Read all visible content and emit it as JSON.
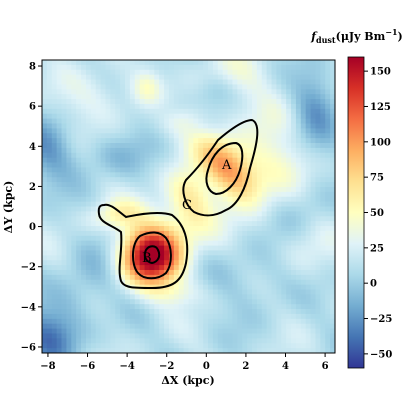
{
  "chart_data": {
    "type": "heatmap",
    "title": "",
    "xlabel": "ΔX (kpc)",
    "ylabel": "ΔY (kpc)",
    "xlim": [
      -8.3,
      6.5
    ],
    "ylim": [
      -6.3,
      8.3
    ],
    "x_ticks": [
      -8,
      -6,
      -4,
      -2,
      0,
      2,
      4,
      6
    ],
    "y_ticks": [
      -6,
      -4,
      -2,
      0,
      2,
      4,
      6,
      8
    ],
    "x_tick_labels": [
      "−8",
      "−6",
      "−4",
      "−2",
      "0",
      "2",
      "4",
      "6"
    ],
    "y_tick_labels": [
      "−6",
      "−4",
      "−2",
      "0",
      "2",
      "4",
      "6",
      "8"
    ],
    "colorbar": {
      "label": "f_dust(μJy Bm⁻¹)",
      "label_main": "f",
      "label_sub": "dust",
      "label_rest": "(μJy Bm",
      "label_sup": "−1",
      "label_close": ")",
      "colormap": "RdYlBu_r",
      "range": [
        -60,
        160
      ],
      "ticks": [
        -50,
        -25,
        0,
        25,
        50,
        75,
        100,
        125,
        150
      ],
      "tick_labels": [
        "−50",
        "−25",
        "0",
        "25",
        "50",
        "75",
        "100",
        "125",
        "150"
      ]
    },
    "sources": [
      {
        "name": "A",
        "x": 1.0,
        "y": 3.0,
        "peak": 115
      },
      {
        "name": "B",
        "x": -2.8,
        "y": -1.5,
        "peak": 155
      },
      {
        "name": "C",
        "x": -1.0,
        "y": 1.0,
        "peak": 80
      }
    ],
    "contours": [
      "outer emission boundary",
      "middle level around peaks",
      "inner peak contour around B"
    ]
  }
}
